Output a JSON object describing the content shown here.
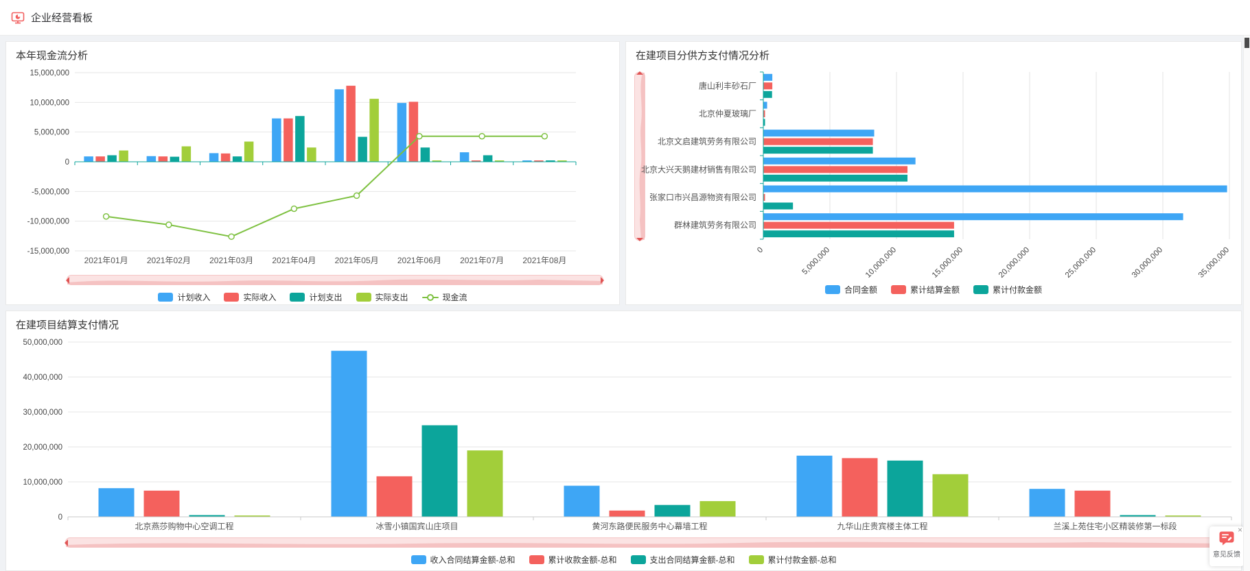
{
  "header": {
    "title": "企业经营看板"
  },
  "colors": {
    "blue": "#3EA6F5",
    "red": "#F4615D",
    "teal": "#0CA59B",
    "green": "#A2CE3A",
    "line_green": "#7EC141",
    "axis_teal": "#0CA59B",
    "accent_red": "#F25E5E",
    "slider_track": "#FBE3E3",
    "slider_handle": "#E05454"
  },
  "chart_data": [
    {
      "type": "bar",
      "title": "本年现金流分析",
      "categories": [
        "2021年01月",
        "2021年02月",
        "2021年03月",
        "2021年04月",
        "2021年05月",
        "2021年06月",
        "2021年07月",
        "2021年08月"
      ],
      "ylim": [
        -15000000,
        15000000
      ],
      "ytick_step": 5000000,
      "grid": true,
      "legend_position": "bottom",
      "series": [
        {
          "name": "计划收入",
          "type": "bar",
          "color": "#3EA6F5",
          "values": [
            900000,
            950000,
            1450000,
            7300000,
            12200000,
            9900000,
            1600000,
            60000
          ]
        },
        {
          "name": "实际收入",
          "type": "bar",
          "color": "#F4615D",
          "values": [
            900000,
            900000,
            1400000,
            7300000,
            12800000,
            10100000,
            120000,
            60000
          ]
        },
        {
          "name": "计划支出",
          "type": "bar",
          "color": "#0CA59B",
          "values": [
            1100000,
            850000,
            900000,
            7700000,
            4200000,
            2400000,
            1100000,
            60000
          ]
        },
        {
          "name": "实际支出",
          "type": "bar",
          "color": "#A2CE3A",
          "values": [
            1900000,
            2600000,
            3400000,
            2400000,
            10600000,
            150000,
            150000,
            60000
          ]
        },
        {
          "name": "现金流",
          "type": "line",
          "color": "#7EC141",
          "values": [
            -9200000,
            -10600000,
            -12600000,
            -7900000,
            -5700000,
            4300000,
            4300000,
            4300000
          ]
        }
      ]
    },
    {
      "type": "bar-horizontal",
      "title": "在建项目分供方支付情况分析",
      "categories": [
        "唐山利丰砂石厂",
        "北京仲夏玻璃厂",
        "北京文启建筑劳务有限公司",
        "北京大兴天鹅建材销售有限公司",
        "张家口市兴昌源物资有限公司",
        "群林建筑劳务有限公司"
      ],
      "xlim": [
        0,
        35000000
      ],
      "xtick_step": 5000000,
      "grid": true,
      "legend_position": "bottom",
      "series": [
        {
          "name": "合同金额",
          "type": "bar",
          "color": "#3EA6F5",
          "values": [
            650000,
            260000,
            8300000,
            11400000,
            34800000,
            31500000
          ]
        },
        {
          "name": "累计结算金额",
          "type": "bar",
          "color": "#F4615D",
          "values": [
            650000,
            60000,
            8200000,
            10800000,
            60000,
            14300000
          ]
        },
        {
          "name": "累计付款金额",
          "type": "bar",
          "color": "#0CA59B",
          "values": [
            630000,
            50000,
            8200000,
            10800000,
            2200000,
            14300000
          ]
        }
      ]
    },
    {
      "type": "bar",
      "title": "在建项目结算支付情况",
      "categories": [
        "北京燕莎购物中心空调工程",
        "冰雪小镇国宾山庄项目",
        "黄河东路便民服务中心幕墙工程",
        "九华山庄贵宾楼主体工程",
        "兰溪上苑住宅小区精装修第一标段"
      ],
      "ylim": [
        0,
        50000000
      ],
      "ytick_step": 10000000,
      "grid": true,
      "legend_position": "bottom",
      "series": [
        {
          "name": "收入合同结算金额-总和",
          "type": "bar",
          "color": "#3EA6F5",
          "values": [
            8200000,
            47500000,
            8900000,
            17500000,
            8000000
          ]
        },
        {
          "name": "累计收款金额-总和",
          "type": "bar",
          "color": "#F4615D",
          "values": [
            7500000,
            11600000,
            1800000,
            16800000,
            7500000
          ]
        },
        {
          "name": "支出合同结算金额-总和",
          "type": "bar",
          "color": "#0CA59B",
          "values": [
            500000,
            26200000,
            3400000,
            16100000,
            500000
          ]
        },
        {
          "name": "累计付款金额-总和",
          "type": "bar",
          "color": "#A2CE3A",
          "values": [
            300000,
            19000000,
            4500000,
            12200000,
            250000
          ]
        }
      ]
    }
  ],
  "feedback": {
    "label": "意见反馈",
    "close": "×"
  }
}
